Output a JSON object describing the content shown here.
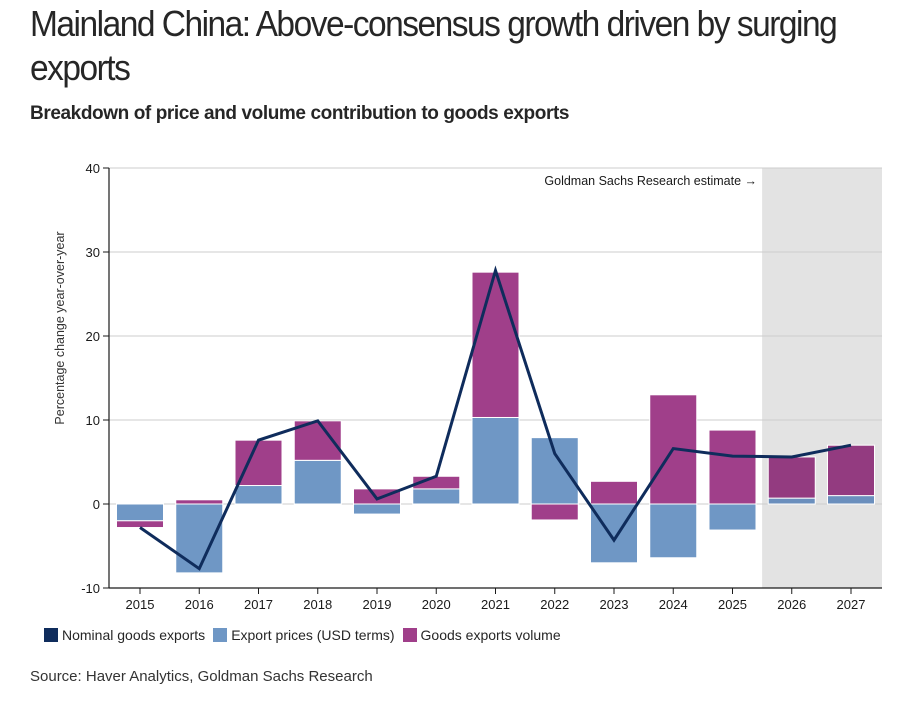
{
  "header": {
    "title": "Mainland China: Above-consensus growth driven by surging exports",
    "subtitle": "Breakdown of price and volume contribution to goods exports"
  },
  "footer": {
    "source": "Source: Haver Analytics, Goldman Sachs Research"
  },
  "colors": {
    "nominal": "#0f2c5c",
    "price": "#6f97c5",
    "volume": "#a03f8a",
    "price_forecast": "#6b8fbd",
    "volume_forecast": "#933b80",
    "forecast_shade": "#e3e3e3",
    "grid": "#cccccc",
    "axis": "#1a1a1a"
  },
  "chart_data": {
    "type": "bar",
    "stacked": true,
    "title": "Breakdown of price and volume contribution to goods exports",
    "xlabel": "",
    "ylabel": "Percentage change year-over-year",
    "ylim": [
      -10,
      40
    ],
    "yticks": [
      -10,
      0,
      10,
      20,
      30,
      40
    ],
    "ytick_labels": [
      "-10",
      "0",
      "10",
      "20",
      "30",
      "40"
    ],
    "grid": true,
    "categories": [
      "2015",
      "2016",
      "2017",
      "2018",
      "2019",
      "2020",
      "2021",
      "2022",
      "2023",
      "2024",
      "2025",
      "2026",
      "2027"
    ],
    "series": [
      {
        "name": "Export prices (USD terms)",
        "kind": "bar",
        "values": [
          -2.0,
          -8.2,
          2.2,
          5.2,
          -1.2,
          1.8,
          10.3,
          7.9,
          -7.0,
          -6.4,
          -3.1,
          0.7,
          1.0
        ]
      },
      {
        "name": "Goods exports volume",
        "kind": "bar",
        "values": [
          -0.8,
          0.5,
          5.4,
          4.7,
          1.8,
          1.5,
          17.3,
          -1.9,
          2.7,
          13.0,
          8.8,
          4.9,
          6.0
        ]
      },
      {
        "name": "Nominal goods exports",
        "kind": "line",
        "values": [
          -2.8,
          -7.7,
          7.6,
          9.9,
          0.6,
          3.3,
          27.8,
          6.0,
          -4.3,
          6.6,
          5.7,
          5.6,
          7.0
        ]
      }
    ],
    "forecast_start": "2026",
    "annotation": "Goldman Sachs Research estimate →",
    "legend": {
      "placement": "bottom-left",
      "entries": [
        "Nominal goods exports",
        "Export prices (USD terms)",
        "Goods exports volume"
      ]
    }
  }
}
